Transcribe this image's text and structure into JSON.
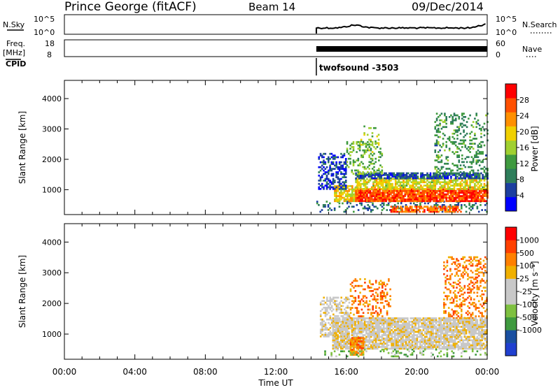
{
  "header": {
    "station": "Prince George (fitACF)",
    "beam": "Beam 14",
    "date": "09/Dec/2014"
  },
  "noise_panel": {
    "left_label": "N.Sky",
    "right_label": "N.Search",
    "left_ticks": [
      "10^5",
      "10^0"
    ],
    "right_ticks": [
      "10^5",
      "10^0"
    ]
  },
  "freq_panel": {
    "left_label_line1": "Freq.",
    "left_label_line2": "[MHz]",
    "right_label": "Nave",
    "left_ticks": [
      "18",
      "8"
    ],
    "right_ticks": [
      "60",
      "0"
    ]
  },
  "cpid": {
    "label": "CPID",
    "program": "twofsound -3503",
    "start_hour": 14.3
  },
  "colors": {
    "power_scale": [
      "#0000ff",
      "#1d3fa0",
      "#2e7d5a",
      "#3f9a3f",
      "#a0d030",
      "#f0d000",
      "#ff9000",
      "#ff5000",
      "#ff0000"
    ],
    "velocity_scale": [
      "#2040d0",
      "#1a4fa0",
      "#3f9a3f",
      "#7ec040",
      "#c8c8c8",
      "#c8c8c8",
      "#f0b000",
      "#ff8000",
      "#ff4000",
      "#ff0000"
    ],
    "axes": "#000000"
  },
  "chart_data": [
    {
      "type": "heatmap",
      "name": "power",
      "ylabel": "Slant Range [km]",
      "xlim": [
        0,
        24
      ],
      "ylim": [
        180,
        4600
      ],
      "yticks": [
        "4000",
        "3000",
        "2000",
        "1000"
      ],
      "colorbar_label": "Power [dB]",
      "colorbar_ticks": [
        "28",
        "24",
        "20",
        "16",
        "12",
        "8",
        "4"
      ],
      "colorbar_range": [
        0,
        32
      ],
      "data_start_hour": 14.3,
      "regions": [
        {
          "t0": 14.3,
          "t1": 24.0,
          "r0": 250,
          "r1": 600,
          "level": 8,
          "density": 0.25
        },
        {
          "t0": 15.3,
          "t1": 16.7,
          "r0": 600,
          "r1": 1100,
          "level": 20,
          "density": 0.8
        },
        {
          "t0": 16.5,
          "t1": 24.0,
          "r0": 600,
          "r1": 1000,
          "level": 27,
          "density": 0.9
        },
        {
          "t0": 16.5,
          "t1": 24.0,
          "r0": 1000,
          "r1": 1350,
          "level": 18,
          "density": 0.7
        },
        {
          "t0": 16.5,
          "t1": 24.0,
          "r0": 1350,
          "r1": 1550,
          "level": 6,
          "density": 0.8
        },
        {
          "t0": 18.5,
          "t1": 22.5,
          "r0": 250,
          "r1": 450,
          "level": 26,
          "density": 0.7
        },
        {
          "t0": 14.4,
          "t1": 16.0,
          "r0": 1000,
          "r1": 2200,
          "level": 5,
          "density": 0.5
        },
        {
          "t0": 16.0,
          "t1": 18.0,
          "r0": 1500,
          "r1": 2600,
          "level": 14,
          "density": 0.3
        },
        {
          "t0": 16.8,
          "t1": 17.8,
          "r0": 2400,
          "r1": 3100,
          "level": 15,
          "density": 0.25
        },
        {
          "t0": 21.0,
          "t1": 24.0,
          "r0": 1500,
          "r1": 3500,
          "level": 11,
          "density": 0.25
        }
      ]
    },
    {
      "type": "heatmap",
      "name": "velocity",
      "ylabel": "Slant Range [km]",
      "xlim": [
        0,
        24
      ],
      "ylim": [
        180,
        4600
      ],
      "yticks": [
        "4000",
        "3000",
        "2000",
        "1000"
      ],
      "xticks": [
        "00:00",
        "04:00",
        "08:00",
        "12:00",
        "16:00",
        "20:00",
        "00:00"
      ],
      "xlabel": "Time UT",
      "colorbar_label": "Velocity [m s⁻¹]",
      "colorbar_ticks": [
        "1000",
        "500",
        "100",
        "25",
        "-25",
        "-100",
        "-500",
        "-1000"
      ],
      "data_start_hour": 14.3,
      "regions": [
        {
          "t0": 15.2,
          "t1": 24.0,
          "r0": 500,
          "r1": 1500,
          "level": 5,
          "density": 0.85
        },
        {
          "t0": 14.5,
          "t1": 16.2,
          "r0": 900,
          "r1": 2200,
          "level": 5,
          "density": 0.5
        },
        {
          "t0": 16.2,
          "t1": 17.0,
          "r0": 300,
          "r1": 900,
          "level": 7,
          "density": 0.8
        },
        {
          "t0": 14.3,
          "t1": 24.0,
          "r0": 250,
          "r1": 500,
          "level": 3,
          "density": 0.2
        },
        {
          "t0": 16.2,
          "t1": 18.5,
          "r0": 1500,
          "r1": 2800,
          "level": 7,
          "density": 0.3
        },
        {
          "t0": 21.5,
          "t1": 24.0,
          "r0": 1500,
          "r1": 3500,
          "level": 7,
          "density": 0.3
        }
      ]
    }
  ]
}
